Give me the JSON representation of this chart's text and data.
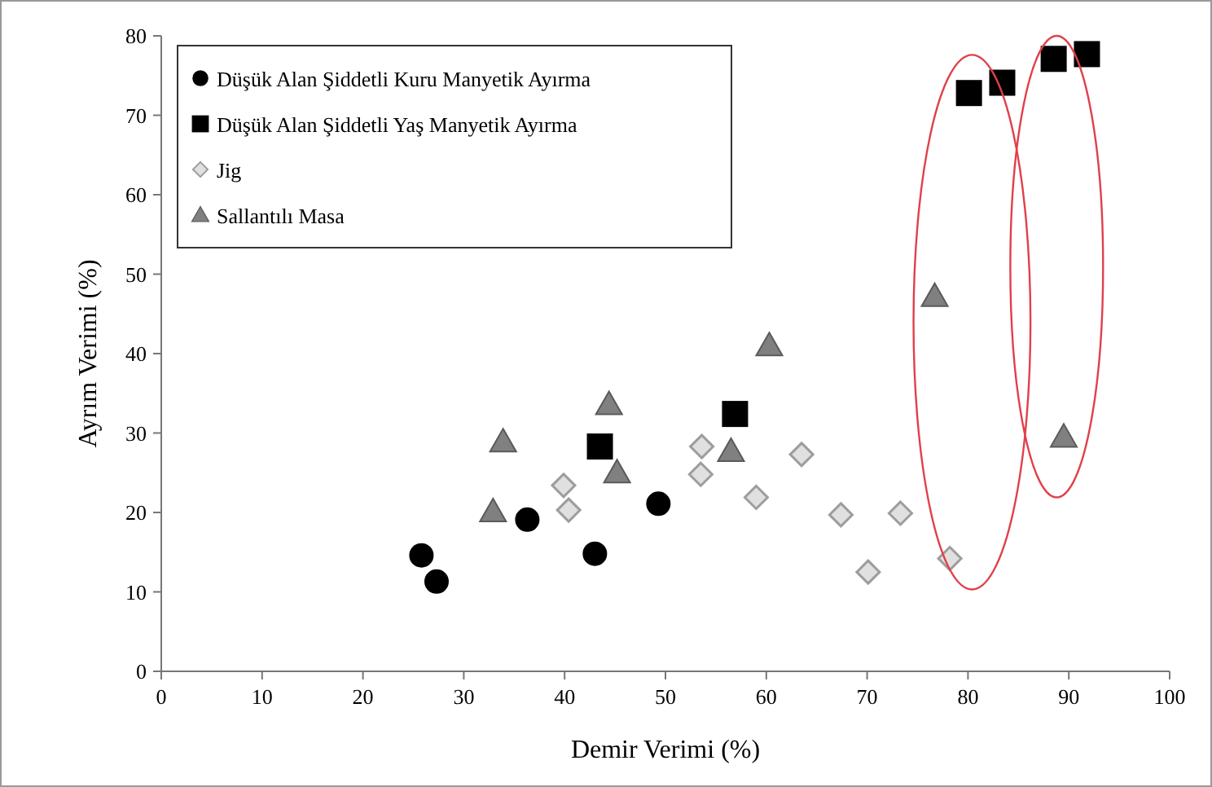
{
  "chart_data": {
    "type": "scatter",
    "xlabel": "Demir Verimi (%)",
    "ylabel": "Ayrım Verimi (%)",
    "xlim": [
      0,
      100
    ],
    "ylim": [
      0,
      80
    ],
    "xticks": [
      0,
      10,
      20,
      30,
      40,
      50,
      60,
      70,
      80,
      90,
      100
    ],
    "yticks": [
      0,
      10,
      20,
      30,
      40,
      50,
      60,
      70,
      80
    ],
    "grid": false,
    "legend": "top left",
    "series": [
      {
        "name": "Düşük Alan Şiddetli Kuru Manyetik Ayırma",
        "color": "#000000",
        "marker": "circle",
        "x": [
          25.8,
          27.3,
          36.3,
          43.0,
          49.3
        ],
        "values": [
          14.6,
          11.3,
          19.1,
          14.8,
          21.1
        ]
      },
      {
        "name": "Düşük Alan Şiddetli Yaş Manyetik Ayırma",
        "color": "#000000",
        "marker": "square",
        "x": [
          43.5,
          56.9,
          80.1,
          83.4,
          88.5,
          91.8
        ],
        "values": [
          28.3,
          32.4,
          72.8,
          74.1,
          77.1,
          77.7
        ]
      },
      {
        "name": "Jig",
        "color": "#e0e0e0",
        "marker": "diamond",
        "x": [
          39.9,
          40.4,
          53.6,
          53.5,
          59.0,
          63.5,
          67.4,
          70.1,
          73.3,
          78.2
        ],
        "values": [
          23.4,
          20.3,
          28.3,
          24.8,
          21.9,
          27.3,
          19.7,
          12.5,
          19.9,
          14.2
        ]
      },
      {
        "name": "Sallantılı Masa",
        "color": "#808080",
        "marker": "triangle",
        "x": [
          33.9,
          32.9,
          44.4,
          45.2,
          56.5,
          60.3,
          76.7,
          89.5
        ],
        "values": [
          28.9,
          20.1,
          33.6,
          25.0,
          27.7,
          41.0,
          47.2,
          29.5
        ]
      }
    ]
  }
}
